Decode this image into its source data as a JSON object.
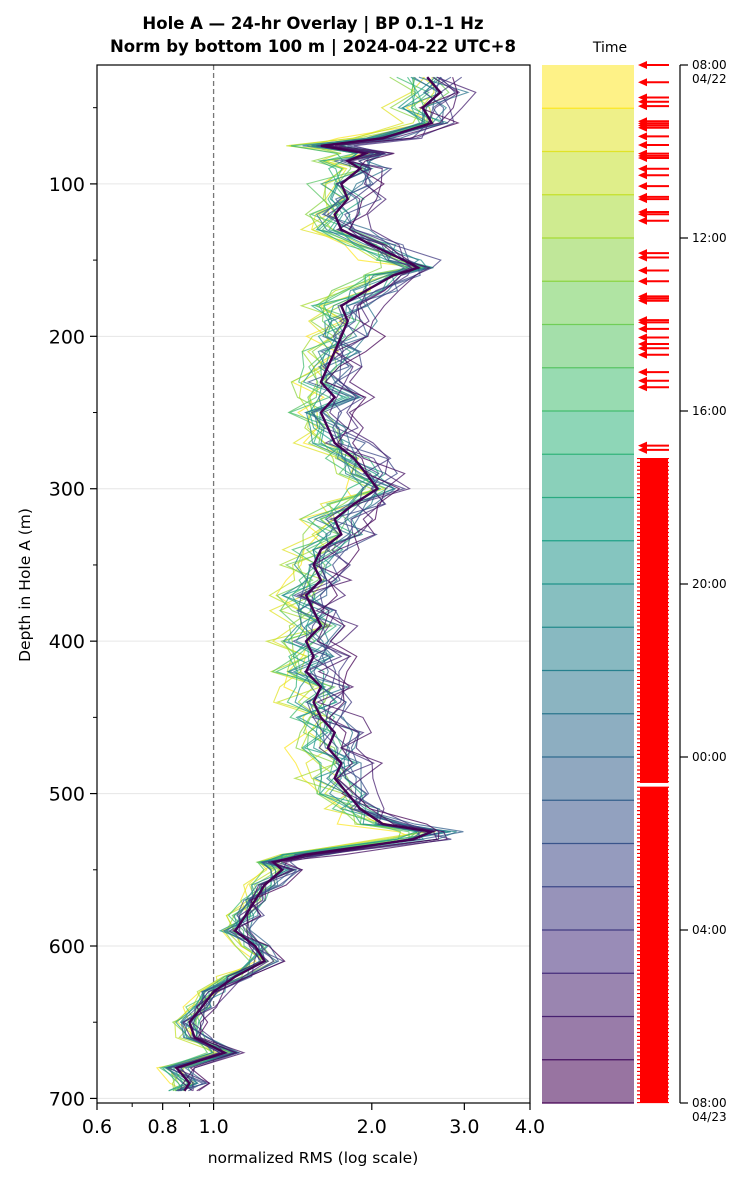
{
  "chart_data": {
    "type": "line",
    "title_line1": "Hole A — 24-hr Overlay  |  BP 0.1–1 Hz",
    "title_line2": "Norm by bottom 100 m  |  2024-04-22 UTC+8",
    "xlabel": "normalized RMS  (log scale)",
    "ylabel": "Depth in Hole A (m)",
    "x_scale": "log",
    "xlim": [
      0.6,
      4.0
    ],
    "ylim": [
      703,
      22
    ],
    "y_inverted": true,
    "x_ticks": [
      {
        "v": 0.6,
        "label": "0.6"
      },
      {
        "v": 0.8,
        "label": "0.8"
      },
      {
        "v": 1.0,
        "label": "1.0"
      },
      {
        "v": 2.0,
        "label": "2.0"
      },
      {
        "v": 3.0,
        "label": "3.0"
      },
      {
        "v": 4.0,
        "label": "4.0"
      }
    ],
    "y_ticks": [
      100,
      200,
      300,
      400,
      500,
      600,
      700
    ],
    "reference_line_x": 1.0,
    "grid": "horizontal",
    "n_traces": 24,
    "colormap": "viridis (purple = earliest, yellow = latest)",
    "median_profile": {
      "depth": [
        30,
        40,
        50,
        60,
        70,
        75,
        80,
        85,
        90,
        100,
        110,
        120,
        130,
        140,
        150,
        155,
        160,
        170,
        180,
        190,
        200,
        210,
        220,
        230,
        240,
        250,
        260,
        270,
        280,
        290,
        300,
        310,
        320,
        330,
        340,
        350,
        360,
        370,
        380,
        390,
        400,
        410,
        420,
        430,
        440,
        450,
        460,
        470,
        480,
        490,
        500,
        510,
        520,
        525,
        530,
        540,
        545,
        550,
        560,
        570,
        580,
        590,
        600,
        610,
        620,
        630,
        640,
        650,
        660,
        670,
        680,
        690,
        695
      ],
      "rms": [
        2.55,
        2.7,
        2.5,
        2.6,
        2.1,
        1.6,
        1.95,
        1.8,
        1.9,
        1.75,
        1.8,
        1.7,
        1.75,
        2.0,
        2.3,
        2.45,
        2.2,
        1.95,
        1.75,
        1.8,
        1.75,
        1.7,
        1.65,
        1.6,
        1.7,
        1.6,
        1.65,
        1.7,
        1.85,
        1.95,
        2.05,
        1.85,
        1.7,
        1.75,
        1.6,
        1.55,
        1.6,
        1.5,
        1.55,
        1.6,
        1.5,
        1.55,
        1.5,
        1.6,
        1.55,
        1.6,
        1.7,
        1.65,
        1.75,
        1.7,
        1.8,
        1.9,
        2.1,
        2.6,
        2.4,
        1.5,
        1.3,
        1.35,
        1.25,
        1.2,
        1.15,
        1.1,
        1.2,
        1.25,
        1.1,
        1.0,
        0.95,
        0.9,
        0.92,
        1.05,
        0.85,
        0.9,
        0.88
      ]
    },
    "colorbar": {
      "title": "Time",
      "n_bands": 24,
      "tick_labels": [
        {
          "label": "08:00",
          "sub": "04/22",
          "hours": 0
        },
        {
          "label": "12:00",
          "sub": "",
          "hours": 4
        },
        {
          "label": "16:00",
          "sub": "",
          "hours": 8
        },
        {
          "label": "20:00",
          "sub": "",
          "hours": 12
        },
        {
          "label": "00:00",
          "sub": "",
          "hours": 16
        },
        {
          "label": "04:00",
          "sub": "",
          "hours": 20
        },
        {
          "label": "08:00",
          "sub": "04/23",
          "hours": 24
        }
      ],
      "event_marker_color": "#ff0000",
      "event_hours": [
        0.0,
        0.4,
        0.75,
        0.85,
        0.95,
        1.3,
        1.35,
        1.4,
        1.45,
        1.65,
        1.85,
        2.05,
        2.1,
        2.15,
        2.4,
        2.55,
        2.8,
        3.05,
        3.1,
        3.4,
        3.45,
        3.6,
        4.35,
        4.45,
        4.75,
        5.0,
        5.35,
        5.4,
        5.45,
        5.9,
        5.95,
        6.1,
        6.3,
        6.45,
        6.55,
        6.7,
        7.1,
        7.3,
        7.45,
        8.8,
        8.9
      ],
      "event_dense_ranges_hours": [
        [
          9.1,
          16.6
        ],
        [
          16.7,
          24.0
        ]
      ]
    }
  }
}
